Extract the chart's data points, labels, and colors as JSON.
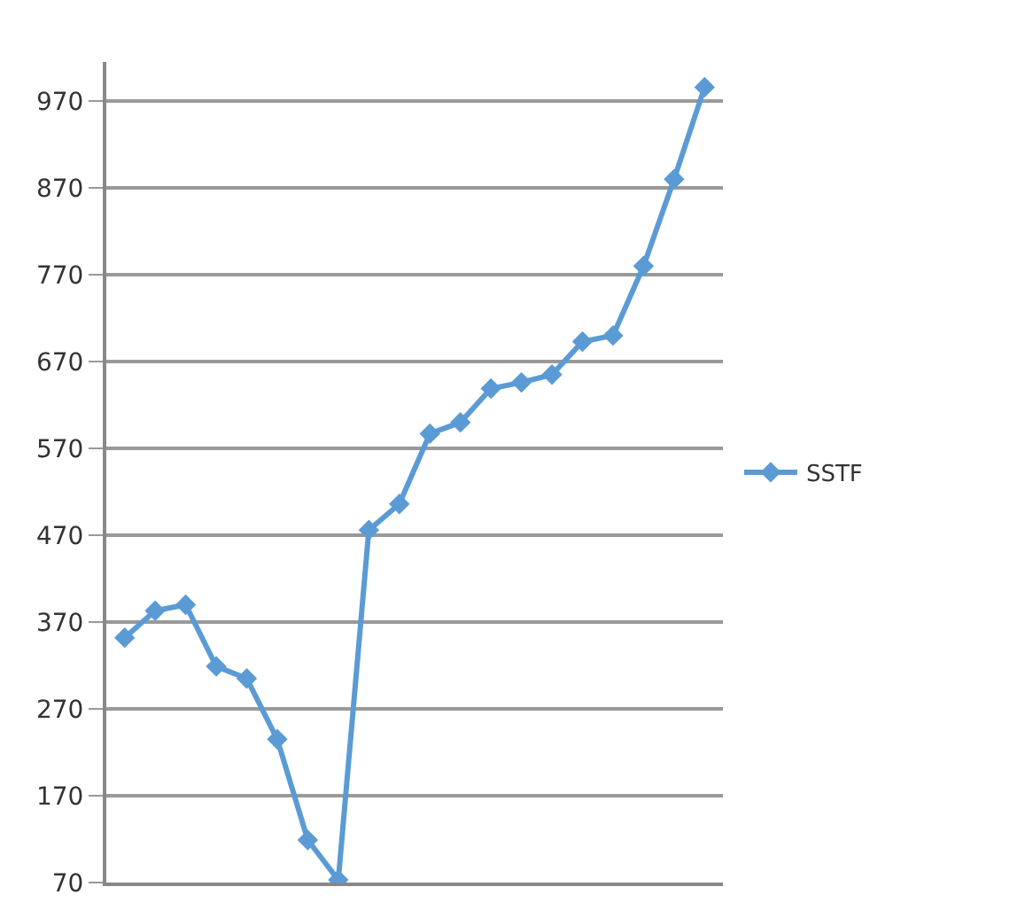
{
  "chart_data": {
    "type": "line",
    "categories": [
      null,
      null,
      null,
      null,
      null,
      null,
      null,
      null,
      null,
      null,
      null,
      null,
      null,
      null,
      null,
      null,
      null,
      null,
      null,
      null
    ],
    "series": [
      {
        "name": "SSTF",
        "color": "#5b9bd5",
        "values": [
          352,
          383,
          390,
          319,
          305,
          235,
          119,
          73,
          476,
          506,
          587,
          600,
          639,
          646,
          655,
          693,
          700,
          780,
          880,
          986
        ]
      }
    ],
    "ylim": [
      70,
      1015
    ],
    "yticks": [
      70,
      170,
      270,
      370,
      470,
      570,
      670,
      770,
      870,
      970
    ],
    "grid": "y",
    "legend": "right",
    "marker": "diamond",
    "line_style": "solid",
    "tick_labels": "y"
  }
}
